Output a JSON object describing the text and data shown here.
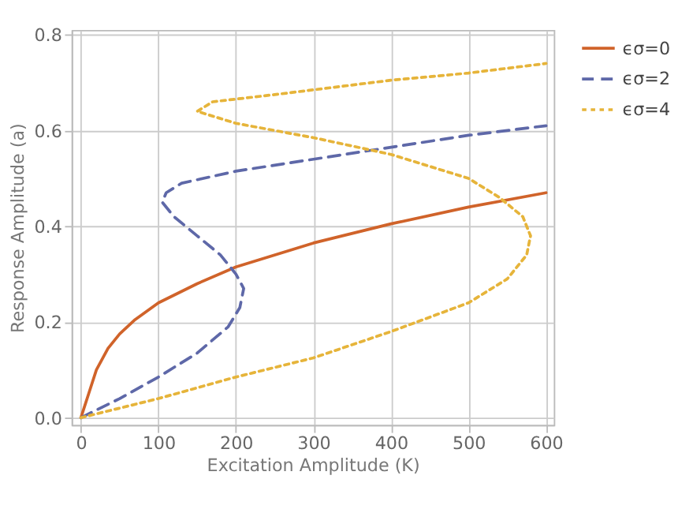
{
  "chart_data": {
    "type": "line",
    "xlabel": "Excitation Amplitude (K)",
    "ylabel": "Response Amplitude (a)",
    "xlim": [
      -12,
      610
    ],
    "ylim": [
      -0.015,
      0.81
    ],
    "xticks": [
      0,
      100,
      200,
      300,
      400,
      500,
      600
    ],
    "yticks": [
      {
        "value": 0,
        "label": "0.0"
      },
      {
        "value": 0.2,
        "label": "0.2"
      },
      {
        "value": 0.4,
        "label": "0.4"
      },
      {
        "value": 0.6,
        "label": "0.6"
      },
      {
        "value": 0.8,
        "label": "0.8"
      }
    ],
    "grid": true,
    "legend": "right",
    "marker": "none",
    "series": [
      {
        "name": "ϵσ=0",
        "color": "#d0632a",
        "line_style": "solid",
        "x": [
          0,
          10,
          20,
          35,
          50,
          70,
          100,
          150,
          200,
          300,
          400,
          500,
          600
        ],
        "values": [
          0,
          0.05,
          0.1,
          0.145,
          0.175,
          0.205,
          0.24,
          0.28,
          0.315,
          0.365,
          0.405,
          0.44,
          0.47
        ]
      },
      {
        "name": "ϵσ=2",
        "color": "#5e68a8",
        "line_style": "dashed",
        "x": [
          0,
          50,
          100,
          150,
          190,
          205,
          210,
          200,
          180,
          150,
          120,
          105,
          110,
          130,
          200,
          300,
          400,
          500,
          600
        ],
        "values": [
          0,
          0.04,
          0.085,
          0.135,
          0.19,
          0.23,
          0.27,
          0.3,
          0.34,
          0.38,
          0.42,
          0.45,
          0.47,
          0.49,
          0.515,
          0.54,
          0.565,
          0.59,
          0.61
        ]
      },
      {
        "name": "ϵσ=4",
        "color": "#e6b43a",
        "line_style": "dotted",
        "x": [
          0,
          100,
          200,
          300,
          400,
          500,
          550,
          575,
          580,
          570,
          540,
          500,
          400,
          300,
          200,
          150,
          170,
          250,
          400,
          500,
          600
        ],
        "values": [
          0,
          0.04,
          0.085,
          0.125,
          0.18,
          0.24,
          0.29,
          0.34,
          0.38,
          0.42,
          0.46,
          0.5,
          0.55,
          0.585,
          0.615,
          0.64,
          0.66,
          0.675,
          0.705,
          0.72,
          0.74
        ]
      }
    ]
  }
}
